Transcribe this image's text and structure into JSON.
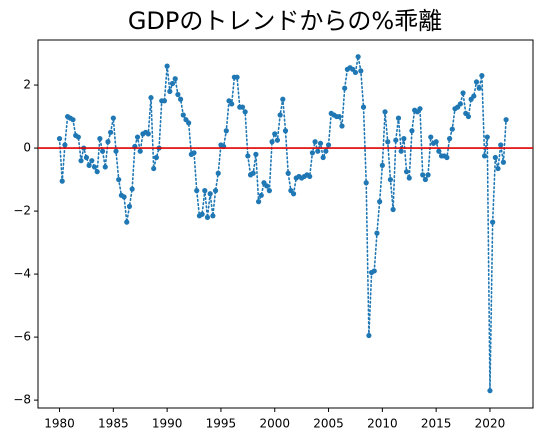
{
  "chart_data": {
    "type": "line",
    "title": "GDPのトレンドからの%乖離",
    "x": [
      1980,
      1980.25,
      1980.5,
      1980.75,
      1981,
      1981.25,
      1981.5,
      1981.75,
      1982,
      1982.25,
      1982.5,
      1982.75,
      1983,
      1983.25,
      1983.5,
      1983.75,
      1984,
      1984.25,
      1984.5,
      1984.75,
      1985,
      1985.25,
      1985.5,
      1985.75,
      1986,
      1986.25,
      1986.5,
      1986.75,
      1987,
      1987.25,
      1987.5,
      1987.75,
      1988,
      1988.25,
      1988.5,
      1988.75,
      1989,
      1989.25,
      1989.5,
      1989.75,
      1990,
      1990.25,
      1990.5,
      1990.75,
      1991,
      1991.25,
      1991.5,
      1991.75,
      1992,
      1992.25,
      1992.5,
      1992.75,
      1993,
      1993.25,
      1993.5,
      1993.75,
      1994,
      1994.25,
      1994.5,
      1994.75,
      1995,
      1995.25,
      1995.5,
      1995.75,
      1996,
      1996.25,
      1996.5,
      1996.75,
      1997,
      1997.25,
      1997.5,
      1997.75,
      1998,
      1998.25,
      1998.5,
      1998.75,
      1999,
      1999.25,
      1999.5,
      1999.75,
      2000,
      2000.25,
      2000.5,
      2000.75,
      2001,
      2001.25,
      2001.5,
      2001.75,
      2002,
      2002.25,
      2002.5,
      2002.75,
      2003,
      2003.25,
      2003.5,
      2003.75,
      2004,
      2004.25,
      2004.5,
      2004.75,
      2005,
      2005.25,
      2005.5,
      2005.75,
      2006,
      2006.25,
      2006.5,
      2006.75,
      2007,
      2007.25,
      2007.5,
      2007.75,
      2008,
      2008.25,
      2008.5,
      2008.75,
      2009,
      2009.25,
      2009.5,
      2009.75,
      2010,
      2010.25,
      2010.5,
      2010.75,
      2011,
      2011.25,
      2011.5,
      2011.75,
      2012,
      2012.25,
      2012.5,
      2012.75,
      2013,
      2013.25,
      2013.5,
      2013.75,
      2014,
      2014.25,
      2014.5,
      2014.75,
      2015,
      2015.25,
      2015.5,
      2015.75,
      2016,
      2016.25,
      2016.5,
      2016.75,
      2017,
      2017.25,
      2017.5,
      2017.75,
      2018,
      2018.25,
      2018.5,
      2018.75,
      2019,
      2019.25,
      2019.5,
      2019.75,
      2020,
      2020.25,
      2020.5,
      2020.75,
      2021,
      2021.25,
      2021.5
    ],
    "series": [
      {
        "color": "#1f77b4",
        "values": [
          0.3,
          -1.05,
          0.1,
          1.0,
          0.95,
          0.9,
          0.4,
          0.35,
          -0.4,
          0.0,
          -0.3,
          -0.55,
          -0.4,
          -0.6,
          -0.75,
          0.3,
          -0.1,
          -0.6,
          0.2,
          0.5,
          0.95,
          -0.1,
          -1.0,
          -1.5,
          -1.55,
          -2.35,
          -1.85,
          -1.3,
          0.05,
          0.35,
          -0.1,
          0.45,
          0.5,
          0.45,
          1.6,
          -0.65,
          -0.3,
          0.0,
          1.5,
          1.5,
          2.6,
          1.8,
          2.05,
          2.2,
          1.7,
          1.55,
          1.05,
          0.9,
          0.8,
          -0.2,
          -0.15,
          -1.35,
          -2.15,
          -2.1,
          -1.35,
          -2.2,
          -1.45,
          -2.15,
          -1.35,
          -0.8,
          0.1,
          0.05,
          0.55,
          1.5,
          1.4,
          2.25,
          2.25,
          1.3,
          1.3,
          1.15,
          -0.25,
          -0.85,
          -0.8,
          -0.2,
          -1.7,
          -1.5,
          -1.1,
          -1.2,
          -1.35,
          0.2,
          0.45,
          0.25,
          1.05,
          1.55,
          0.55,
          -0.8,
          -1.35,
          -1.45,
          -0.95,
          -0.9,
          -0.95,
          -0.9,
          -0.85,
          -0.9,
          -0.15,
          0.2,
          -0.1,
          0.15,
          -0.3,
          -0.1,
          0.1,
          1.1,
          1.05,
          1.0,
          1.0,
          0.7,
          1.9,
          2.5,
          2.55,
          2.5,
          2.4,
          2.9,
          2.45,
          1.3,
          -1.1,
          -5.95,
          -3.95,
          -3.9,
          -2.7,
          -1.7,
          -0.55,
          1.15,
          0.2,
          -1.0,
          -1.95,
          0.25,
          0.95,
          -0.1,
          0.3,
          -0.75,
          -0.95,
          0.55,
          1.2,
          1.15,
          1.25,
          -0.85,
          -1.0,
          -0.85,
          0.35,
          0.15,
          0.2,
          -0.1,
          -0.25,
          -0.25,
          -0.3,
          0.3,
          0.6,
          1.25,
          1.3,
          1.4,
          1.75,
          1.1,
          1.0,
          1.55,
          1.65,
          2.1,
          1.9,
          2.3,
          -0.25,
          0.35,
          -7.7,
          -2.35,
          -0.3,
          -0.65,
          0.1,
          -0.45,
          0.9
        ]
      }
    ],
    "xlim": [
      1978,
      2024
    ],
    "ylim": [
      -8.25,
      3.43
    ],
    "xticks": [
      1980,
      1985,
      1990,
      1995,
      2000,
      2005,
      2010,
      2015,
      2020
    ],
    "yticks": [
      {
        "value": -8,
        "label": "−8"
      },
      {
        "value": -6,
        "label": "−6"
      },
      {
        "value": -4,
        "label": "−4"
      },
      {
        "value": -2,
        "label": "−2"
      },
      0,
      2
    ],
    "reference_line": 0,
    "reference_color": "#e00000",
    "line_style": "dotted",
    "markers": true,
    "grid": false
  }
}
